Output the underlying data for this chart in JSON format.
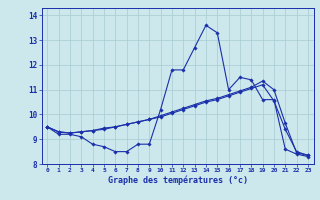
{
  "xlabel": "Graphe des températures (°c)",
  "xlim_min": -0.5,
  "xlim_max": 23.5,
  "ylim_min": 8.0,
  "ylim_max": 14.3,
  "yticks": [
    8,
    9,
    10,
    11,
    12,
    13,
    14
  ],
  "xticks": [
    0,
    1,
    2,
    3,
    4,
    5,
    6,
    7,
    8,
    9,
    10,
    11,
    12,
    13,
    14,
    15,
    16,
    17,
    18,
    19,
    20,
    21,
    22,
    23
  ],
  "bg_color": "#cce8ec",
  "grid_color": "#a8ccd0",
  "line_color": "#1a2faa",
  "hours": [
    0,
    1,
    2,
    3,
    4,
    5,
    6,
    7,
    8,
    9,
    10,
    11,
    12,
    13,
    14,
    15,
    16,
    17,
    18,
    19,
    20,
    21,
    22,
    23
  ],
  "line1": [
    9.5,
    9.2,
    9.2,
    9.1,
    8.8,
    8.7,
    8.5,
    8.5,
    8.8,
    8.8,
    10.2,
    11.8,
    11.8,
    12.7,
    13.6,
    13.3,
    11.0,
    11.5,
    11.4,
    10.6,
    10.6,
    8.6,
    8.4,
    8.3
  ],
  "line2": [
    9.5,
    9.3,
    9.25,
    9.3,
    9.35,
    9.45,
    9.5,
    9.6,
    9.7,
    9.8,
    9.9,
    10.05,
    10.2,
    10.35,
    10.5,
    10.6,
    10.75,
    10.9,
    11.05,
    11.2,
    10.55,
    9.4,
    8.5,
    8.35
  ],
  "line3": [
    9.5,
    9.3,
    9.25,
    9.3,
    9.35,
    9.4,
    9.5,
    9.6,
    9.7,
    9.8,
    9.95,
    10.1,
    10.25,
    10.4,
    10.55,
    10.65,
    10.8,
    10.95,
    11.1,
    11.35,
    11.0,
    9.65,
    8.45,
    8.35
  ]
}
